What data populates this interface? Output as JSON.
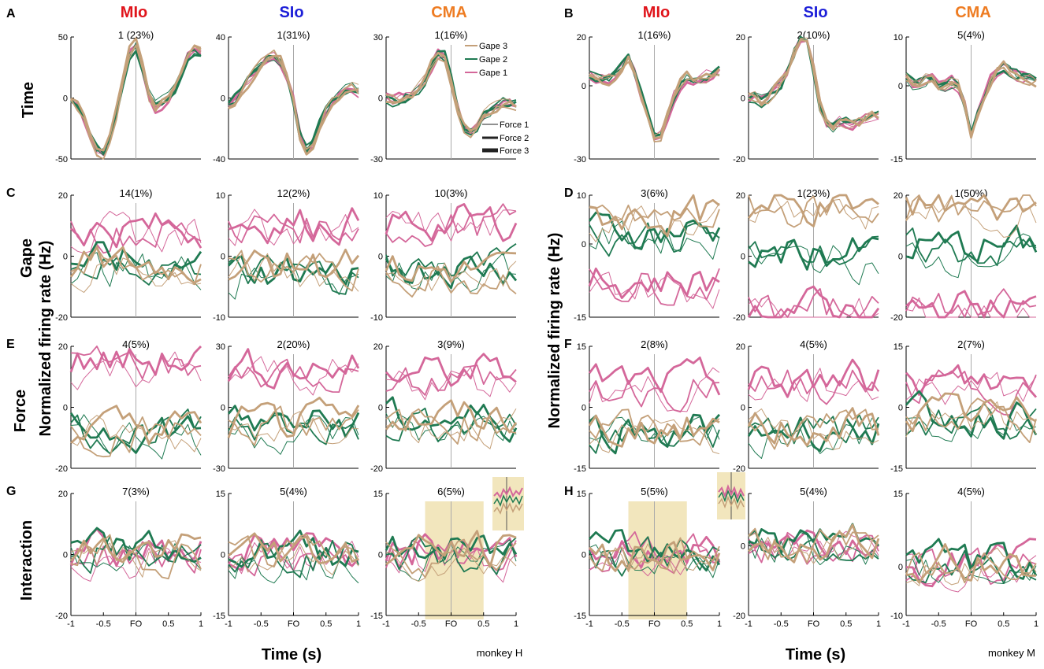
{
  "colors": {
    "gape1": "#d4679a",
    "gape2": "#1f7a52",
    "gape3": "#c4a079",
    "mlo": "#e0141b",
    "slo": "#1d1fd8",
    "cma": "#ee7c22",
    "highlight": "#f2e6bd",
    "axis": "#000000",
    "fo_line": "#aaaaaa"
  },
  "figure": {
    "panel_letters": [
      "A",
      "B",
      "C",
      "D",
      "E",
      "F",
      "G",
      "H"
    ],
    "row_labels": [
      "Time",
      "Gape",
      "Force",
      "Interaction"
    ],
    "ylabel": "Normalized firing rate (Hz)",
    "xlabel": "Time (s)",
    "monkey_labels": [
      "monkey H",
      "monkey M"
    ]
  },
  "chart_data": {
    "type": "line",
    "title": "Neural firing rate components (dPCA) by task variable",
    "xlabel": "Time (s)",
    "ylabel": "Normalized firing rate (Hz)",
    "x": [
      -1,
      -0.9,
      -0.8,
      -0.7,
      -0.6,
      -0.5,
      -0.4,
      -0.3,
      -0.2,
      -0.1,
      0,
      0.1,
      0.2,
      0.3,
      0.4,
      0.5,
      0.6,
      0.7,
      0.8,
      0.9,
      1
    ],
    "xtick_labels": [
      "-1",
      "-0.5",
      "FO",
      "0.5",
      "1"
    ],
    "xtick_values": [
      -1,
      -0.5,
      0,
      0.5,
      1
    ],
    "legend": {
      "gape": [
        "Gape 3",
        "Gape 2",
        "Gape 1"
      ],
      "force": [
        "Force 1",
        "Force 2",
        "Force 3"
      ]
    },
    "areas": [
      "MIo",
      "SIo",
      "CMA"
    ],
    "panels": [
      {
        "letter": "A",
        "monkey": "H",
        "area": "MIo",
        "row": "Time",
        "label": "1 (23%)",
        "ylim": [
          -50,
          50
        ],
        "yticks": [
          "50",
          "0",
          "-50"
        ],
        "template": [
          0,
          -8,
          -25,
          -42,
          -45,
          -30,
          0,
          35,
          45,
          20,
          -10,
          -5,
          0,
          10,
          28,
          40,
          38
        ]
      },
      {
        "letter": "",
        "monkey": "H",
        "area": "SIo",
        "row": "Time",
        "label": "1(31%)",
        "ylim": [
          -40,
          40
        ],
        "yticks": [
          "40",
          "0",
          "-40"
        ],
        "template": [
          -5,
          0,
          8,
          15,
          22,
          27,
          28,
          20,
          0,
          -30,
          -35,
          -20,
          -8,
          0,
          5,
          8,
          5
        ]
      },
      {
        "letter": "",
        "monkey": "H",
        "area": "CMA",
        "row": "Time",
        "label": "1(16%)",
        "ylim": [
          -30,
          30
        ],
        "yticks": [
          "30",
          "0",
          "-30"
        ],
        "template": [
          0,
          -2,
          0,
          2,
          5,
          10,
          20,
          23,
          8,
          -8,
          -18,
          -15,
          -8,
          -5,
          -3,
          -2,
          -3
        ]
      },
      {
        "letter": "B",
        "monkey": "M",
        "area": "MIo",
        "row": "Time",
        "label": "1(16%)",
        "ylim": [
          -30,
          20
        ],
        "yticks": [
          "20",
          "0",
          "-30"
        ],
        "template": [
          5,
          3,
          2,
          4,
          8,
          12,
          0,
          -10,
          -22,
          -20,
          -8,
          0,
          3,
          2,
          3,
          5,
          6
        ]
      },
      {
        "letter": "",
        "monkey": "M",
        "area": "SIo",
        "row": "Time",
        "label": "2(10%)",
        "ylim": [
          -20,
          20
        ],
        "yticks": [
          "20",
          "0",
          "-20"
        ],
        "template": [
          0,
          0,
          -2,
          2,
          5,
          10,
          18,
          22,
          10,
          -5,
          -10,
          -8,
          -8,
          -9,
          -8,
          -6,
          -6
        ]
      },
      {
        "letter": "",
        "monkey": "M",
        "area": "CMA",
        "row": "Time",
        "label": "5(4%)",
        "ylim": [
          -15,
          10
        ],
        "yticks": [
          "10",
          "0",
          "-15"
        ],
        "template": [
          2,
          0,
          1,
          2,
          0,
          0,
          1,
          -2,
          -10,
          -5,
          0,
          3,
          4,
          3,
          2,
          2,
          1
        ]
      },
      {
        "letter": "C",
        "monkey": "H",
        "area": "MIo",
        "row": "Gape",
        "label": "14(1%)",
        "ylim": [
          -20,
          20
        ],
        "yticks": [
          "20",
          "0",
          "-20"
        ],
        "levels": [
          8,
          -3,
          -4
        ]
      },
      {
        "letter": "",
        "monkey": "H",
        "area": "SIo",
        "row": "Gape",
        "label": "12(2%)",
        "ylim": [
          -10,
          10
        ],
        "yticks": [
          "10",
          "0",
          "-10"
        ],
        "levels": [
          5,
          -3,
          -2
        ]
      },
      {
        "letter": "",
        "monkey": "H",
        "area": "CMA",
        "row": "Gape",
        "label": "10(3%)",
        "ylim": [
          -10,
          10
        ],
        "yticks": [
          "10",
          "0",
          "-10"
        ],
        "levels": [
          5,
          -2,
          -3
        ]
      },
      {
        "letter": "D",
        "monkey": "M",
        "area": "MIo",
        "row": "Gape",
        "label": "3(6%)",
        "ylim": [
          -15,
          10
        ],
        "yticks": [
          "10",
          "0",
          "-15"
        ],
        "levels": [
          -8,
          2,
          5
        ]
      },
      {
        "letter": "",
        "monkey": "M",
        "area": "SIo",
        "row": "Gape",
        "label": "1(23%)",
        "ylim": [
          -20,
          20
        ],
        "yticks": [
          "20",
          "0",
          "-20"
        ],
        "levels": [
          -18,
          0,
          15
        ]
      },
      {
        "letter": "",
        "monkey": "M",
        "area": "CMA",
        "row": "Gape",
        "label": "1(50%)",
        "ylim": [
          -20,
          20
        ],
        "yticks": [
          "20",
          "0",
          "-20"
        ],
        "levels": [
          -18,
          2,
          15
        ]
      },
      {
        "letter": "E",
        "monkey": "H",
        "area": "MIo",
        "row": "Force",
        "label": "4(5%)",
        "ylim": [
          -20,
          20
        ],
        "yticks": [
          "20",
          "0",
          "-20"
        ],
        "levels": [
          14,
          -8,
          -8
        ]
      },
      {
        "letter": "",
        "monkey": "H",
        "area": "SIo",
        "row": "Force",
        "label": "2(20%)",
        "ylim": [
          -30,
          30
        ],
        "yticks": [
          "30",
          "0",
          "-30"
        ],
        "levels": [
          18,
          -10,
          -10
        ]
      },
      {
        "letter": "",
        "monkey": "H",
        "area": "CMA",
        "row": "Force",
        "label": "3(9%)",
        "ylim": [
          -20,
          20
        ],
        "yticks": [
          "20",
          "0",
          "-20"
        ],
        "levels": [
          10,
          -5,
          -5
        ]
      },
      {
        "letter": "F",
        "monkey": "M",
        "area": "MIo",
        "row": "Force",
        "label": "2(8%)",
        "ylim": [
          -15,
          15
        ],
        "yticks": [
          "15",
          "0",
          "-15"
        ],
        "levels": [
          5,
          -6,
          -6
        ]
      },
      {
        "letter": "",
        "monkey": "M",
        "area": "SIo",
        "row": "Force",
        "label": "4(5%)",
        "ylim": [
          -20,
          20
        ],
        "yticks": [
          "20",
          "0",
          "-20"
        ],
        "levels": [
          8,
          -8,
          -8
        ]
      },
      {
        "letter": "",
        "monkey": "M",
        "area": "CMA",
        "row": "Force",
        "label": "2(7%)",
        "ylim": [
          -15,
          15
        ],
        "yticks": [
          "15",
          "0",
          "-15"
        ],
        "levels": [
          5,
          -3,
          -3
        ]
      },
      {
        "letter": "G",
        "monkey": "H",
        "area": "MIo",
        "row": "Interaction",
        "label": "7(3%)",
        "ylim": [
          -20,
          20
        ],
        "yticks": [
          "20",
          "0",
          "-20"
        ],
        "levels": [
          0,
          0,
          0
        ]
      },
      {
        "letter": "",
        "monkey": "H",
        "area": "SIo",
        "row": "Interaction",
        "label": "5(4%)",
        "ylim": [
          -15,
          15
        ],
        "yticks": [
          "15",
          "0",
          "-15"
        ],
        "levels": [
          0,
          0,
          0
        ]
      },
      {
        "letter": "",
        "monkey": "H",
        "area": "CMA",
        "row": "Interaction",
        "label": "6(5%)",
        "ylim": [
          -15,
          15
        ],
        "yticks": [
          "15",
          "0",
          "-15"
        ],
        "levels": [
          0,
          0,
          0
        ],
        "highlight": [
          -0.4,
          0.5
        ]
      },
      {
        "letter": "H",
        "monkey": "M",
        "area": "MIo",
        "row": "Interaction",
        "label": "5(5%)",
        "ylim": [
          -15,
          15
        ],
        "yticks": [
          "15",
          "0",
          "-15"
        ],
        "levels": [
          0,
          0,
          0
        ],
        "highlight": [
          -0.4,
          0.5
        ]
      },
      {
        "letter": "",
        "monkey": "M",
        "area": "SIo",
        "row": "Interaction",
        "label": "5(4%)",
        "ylim": [
          -20,
          15
        ],
        "yticks": [
          "15",
          "0",
          "-20"
        ],
        "levels": [
          0,
          0,
          0
        ]
      },
      {
        "letter": "",
        "monkey": "M",
        "area": "CMA",
        "row": "Interaction",
        "label": "4(5%)",
        "ylim": [
          -10,
          15
        ],
        "yticks": [
          "15",
          "0",
          "-10"
        ],
        "levels": [
          0,
          0,
          0
        ]
      }
    ]
  }
}
